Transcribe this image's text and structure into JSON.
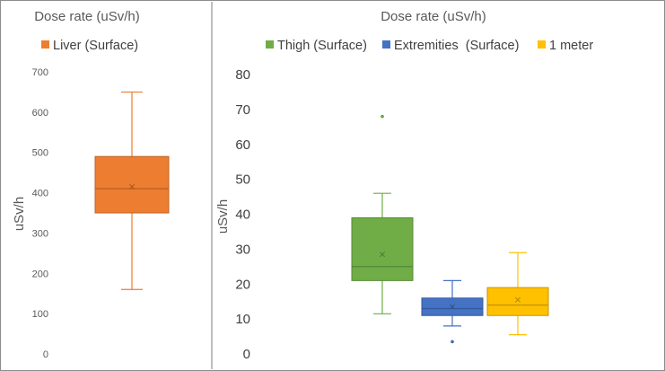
{
  "chart_data": [
    {
      "type": "box",
      "title": "Dose rate (uSv/h)",
      "ylabel": "uSv/h",
      "xlabel": "",
      "ylim": [
        0,
        700
      ],
      "ytick_step": 100,
      "yticks": [
        "0",
        "100",
        "200",
        "300",
        "400",
        "500",
        "600",
        "700"
      ],
      "legend_position": "top",
      "series": [
        {
          "name": "Liver (Surface)",
          "color": "#ED7D31",
          "min": 160,
          "q1": 350,
          "median": 410,
          "mean": 415,
          "q3": 490,
          "max": 650,
          "outliers": []
        }
      ]
    },
    {
      "type": "box",
      "title": "Dose rate (uSv/h)",
      "ylabel": "uSv/h",
      "xlabel": "",
      "ylim": [
        0,
        80
      ],
      "ytick_step": 10,
      "yticks": [
        "0",
        "10",
        "20",
        "30",
        "40",
        "50",
        "60",
        "70",
        "80"
      ],
      "legend_position": "top",
      "series": [
        {
          "name": "Thigh (Surface)",
          "color": "#70AD47",
          "min": 11.5,
          "q1": 21,
          "median": 25,
          "mean": 28.5,
          "q3": 39,
          "max": 46,
          "outliers": [
            68
          ]
        },
        {
          "name": "Extremities  (Surface)",
          "color": "#4472C4",
          "min": 8,
          "q1": 11,
          "median": 13,
          "mean": 13.5,
          "q3": 16,
          "max": 21,
          "outliers": [
            3.5
          ]
        },
        {
          "name": "1 meter",
          "color": "#FFC000",
          "min": 5.5,
          "q1": 11,
          "median": 14,
          "mean": 15.5,
          "q3": 19,
          "max": 29,
          "outliers": []
        }
      ]
    }
  ]
}
